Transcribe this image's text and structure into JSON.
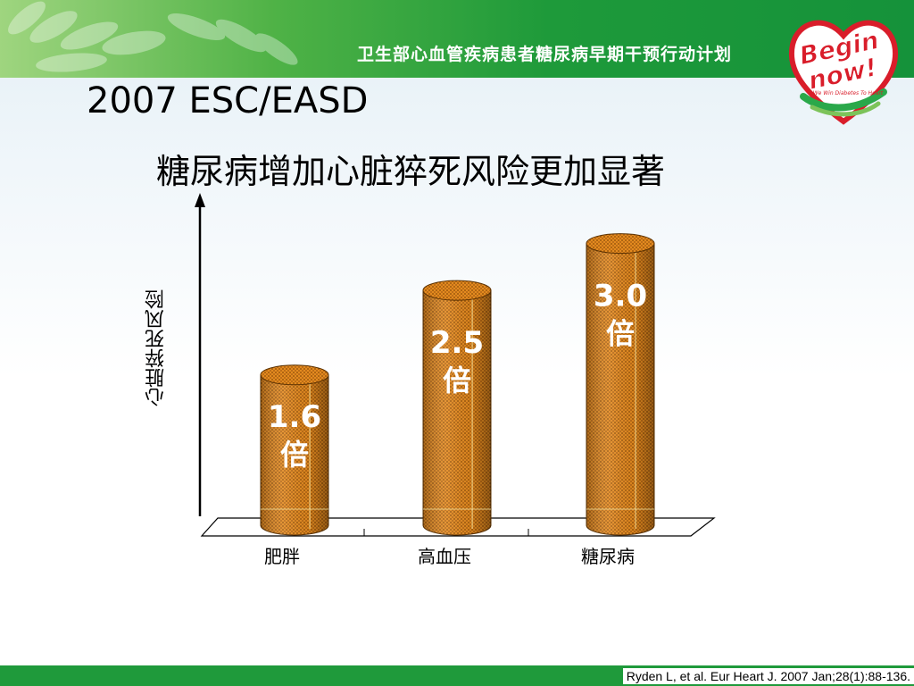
{
  "header": {
    "banner_text": "卫生部心血管疾病患者糖尿病早期干预行动计划",
    "logo_text_top": "Begin",
    "logo_text_bottom": "now!",
    "logo_tagline": "We Win Diabetes To Heart"
  },
  "slide": {
    "title": "2007 ESC/EASD",
    "subtitle": "糖尿病增加心脏猝死风险更加显著"
  },
  "chart_data": {
    "type": "bar",
    "categories": [
      "肥胖",
      "高血压",
      "糖尿病"
    ],
    "values": [
      1.6,
      2.5,
      3.0
    ],
    "value_labels": [
      [
        "1.6",
        "倍"
      ],
      [
        "2.5",
        "倍"
      ],
      [
        "3.0",
        "倍"
      ]
    ],
    "ylabel": "心脏猝死风险",
    "xlabel": "",
    "ylim": [
      0,
      3.5
    ],
    "grid": false,
    "bar_color": "#e07a12",
    "label_color": "#ffffff"
  },
  "footer": {
    "citation": "Ryden L, et al. Eur Heart J. 2007 Jan;28(1):88-136."
  }
}
